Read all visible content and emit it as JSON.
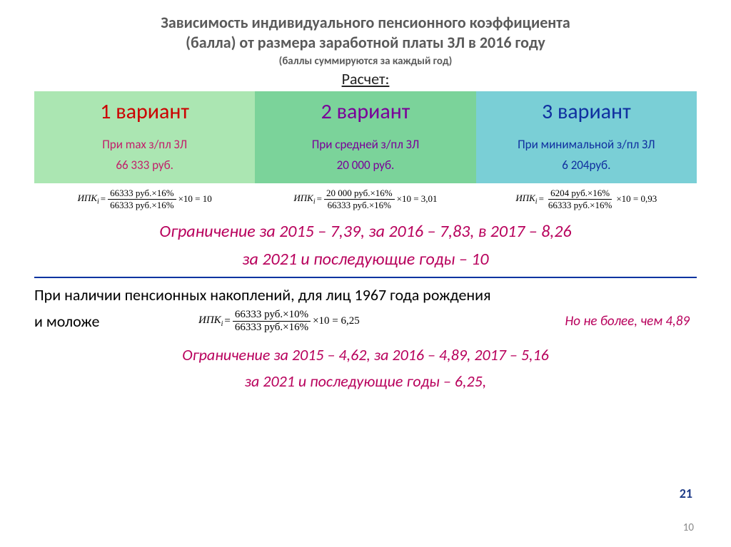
{
  "colors": {
    "title_gray": "#5a5a5a",
    "magenta": "#b8005c",
    "blue_rule": "#0033a0",
    "page_blue": "#1f3c88",
    "v1_bg": "#abe6b2",
    "v1_head": "#cc0000",
    "v1_desc": "#c21f6b",
    "v2_bg": "#7bd39a",
    "v2_head": "#7a0099",
    "v2_desc": "#7a0099",
    "v3_bg": "#7acfd6",
    "v3_head": "#1030a0",
    "v3_desc": "#1030a0"
  },
  "title_l1": "Зависимость индивидуального пенсионного коэффициента",
  "title_l2": "(балла) от размера заработной платы ЗЛ в 2016 году",
  "sub1": "(баллы суммируются  за каждый год)",
  "calc_label": "Расчет:",
  "variants": [
    {
      "head": "1 вариант",
      "desc_l1": "При max з/пл ЗЛ",
      "desc_l2": "66 333 руб.",
      "formula": {
        "num": "66333 руб.×16%",
        "den": "66333 руб.×16%",
        "tail": "×10 = 10"
      }
    },
    {
      "head": "2 вариант",
      "desc_l1": "При средней з/пл ЗЛ",
      "desc_l2": "20 000 руб.",
      "formula": {
        "num": "20 000 руб.×16%",
        "den": "66333 руб.×16%",
        "tail": "×10 = 3,01"
      }
    },
    {
      "head": "3 вариант",
      "desc_l1": "При минимальной з/пл ЗЛ",
      "desc_l2": "6 204руб.",
      "formula": {
        "num": "6204 руб.×16%",
        "den": "66333 руб.×16%",
        "tail": "×10 = 0,93"
      }
    }
  ],
  "ipk_label": "ИПКi",
  "limit_line1": "Ограничение за 2015 – 7,39, за 2016 – 7,83, в 2017 – 8,26",
  "limit_line2": "за 2021 и последующие годы – 10",
  "savings_l1": "При наличии пенсионных накоплений, для лиц 1967 года рождения",
  "savings_l2": "и моложе",
  "savings_formula": {
    "num": "66333 руб.×10%",
    "den": "66333 руб.×16%",
    "tail": "×10 = 6,25"
  },
  "savings_note": "Но не более, чем 4,89",
  "limit_line3": "Ограничение за 2015 – 4,62, за 2016 – 4,89, 2017 – 5,16",
  "limit_line4": "за 2021 и последующие годы  – 6,25,",
  "page_big": "21",
  "page_small": "10"
}
